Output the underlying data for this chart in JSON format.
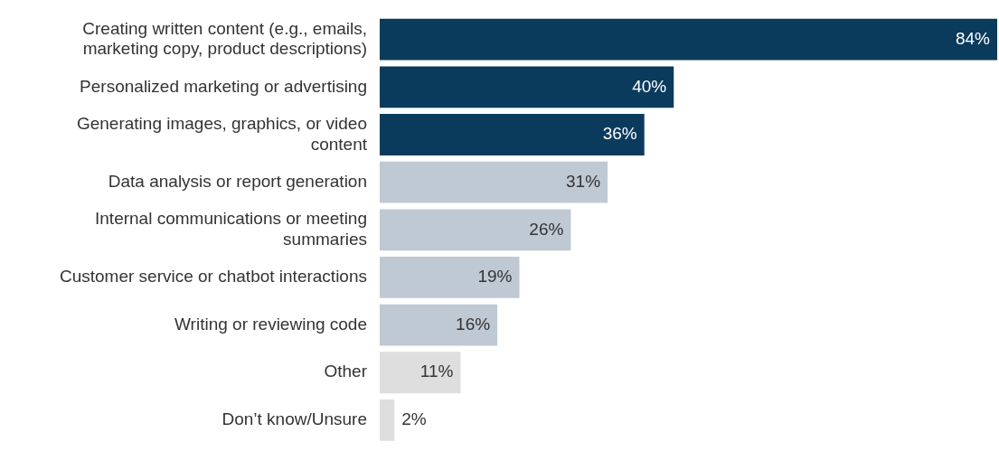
{
  "chart_data": {
    "type": "bar",
    "orientation": "horizontal",
    "value_labels": [
      "84%",
      "40%",
      "36%",
      "31%",
      "26%",
      "19%",
      "16%",
      "11%",
      "2%"
    ],
    "grid": false,
    "legend": false,
    "categories": [
      "Creating written content (e.g., emails, marketing copy, product descriptions)",
      "Personalized marketing or advertising",
      "Generating images, graphics, or video content",
      "Data analysis or report generation",
      "Internal communications or meeting summaries",
      "Customer service or chatbot interactions",
      "Writing or reviewing code",
      "Other",
      "Don’t know/Unsure"
    ],
    "values": [
      84,
      40,
      36,
      31,
      26,
      19,
      16,
      11,
      2
    ],
    "colors": [
      "#0b3b5c",
      "#0b3b5c",
      "#0b3b5c",
      "#bfc9d3",
      "#bfc9d3",
      "#bfc9d3",
      "#bfc9d3",
      "#dedede",
      "#dedede"
    ]
  }
}
